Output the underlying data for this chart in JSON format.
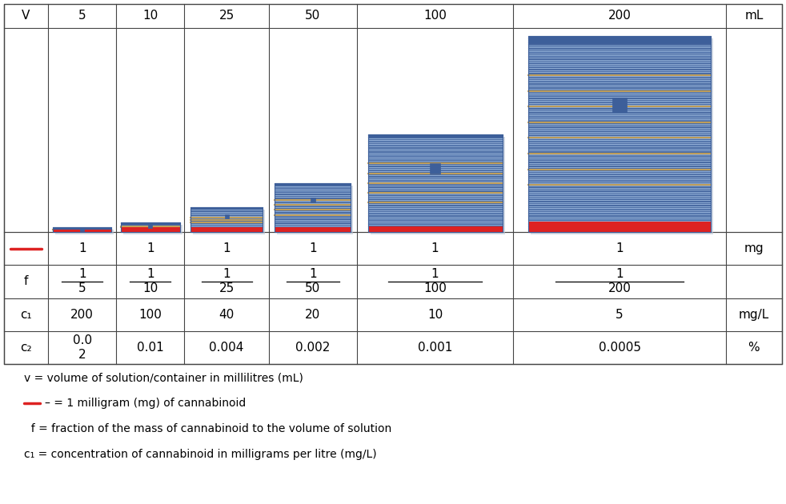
{
  "volumes": [
    5,
    10,
    25,
    50,
    100,
    200
  ],
  "header_labels": [
    "V",
    "5",
    "10",
    "25",
    "50",
    "100",
    "200",
    "mL"
  ],
  "mg_vals": [
    "1",
    "1",
    "1",
    "1",
    "1",
    "1"
  ],
  "f_nums": [
    "1",
    "1",
    "1",
    "1",
    "1",
    "1"
  ],
  "f_dens": [
    "5",
    "10",
    "25",
    "50",
    "100",
    "200"
  ],
  "c1_vals": [
    "200",
    "100",
    "40",
    "20",
    "10",
    "5"
  ],
  "c2_vals": [
    "0.0\n2",
    "0.01",
    "0.004",
    "0.002",
    "0.001",
    "0.0005"
  ],
  "col_widths": [
    0.55,
    0.85,
    0.85,
    1.05,
    1.1,
    1.95,
    2.65,
    0.7
  ],
  "bar_blue_dark": "#3d5f9a",
  "bar_blue_mid": "#5878b8",
  "bar_blue_light": "#7a9fd0",
  "bar_blue_lighter": "#a8c0e0",
  "bar_stripe_gold": "#c8a050",
  "bar_stripe_gold2": "#d4a840",
  "bar_red": "#dd2222",
  "bar_shadow": "#b8c4d4",
  "grid_color": "#888888",
  "table_line_color": "#444444",
  "legend_text1": "v = volume of solution/container in millilitres (mL)",
  "legend_text2": "– = 1 milligram (mg) of cannabinoid",
  "legend_text3": "  f = fraction of the mass of cannabinoid to the volume of solution",
  "legend_text4": "c₁ = concentration of cannabinoid in milligrams per litre (mg/L)"
}
